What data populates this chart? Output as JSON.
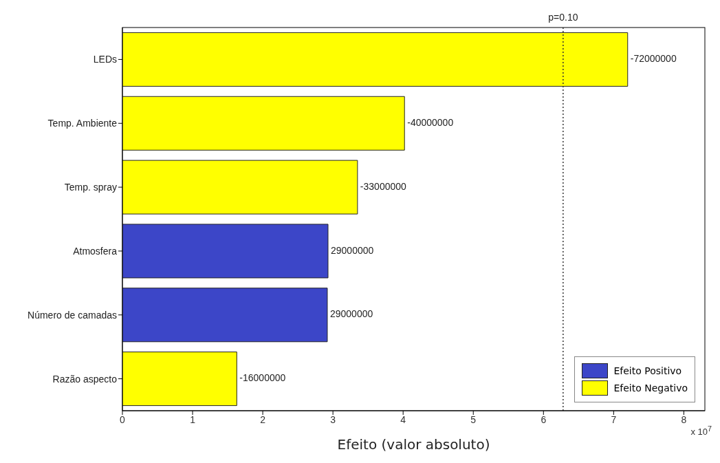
{
  "chart_data": {
    "type": "bar",
    "orientation": "horizontal",
    "stacked": true,
    "xlabel": "Efeito (valor absoluto)",
    "categories": [
      "LEDs",
      "Temp. Ambiente",
      "Temp. spray",
      "Atmosfera",
      "Número de camadas",
      "Razão aspecto"
    ],
    "series": [
      {
        "name": "Efeito Positivo",
        "color": "#3c46c8",
        "values": [
          null,
          null,
          null,
          2.93,
          2.92,
          null
        ]
      },
      {
        "name": "Efeito Negativo",
        "color": "#ffff00",
        "values": [
          7.2,
          4.02,
          3.35,
          null,
          null,
          1.63
        ]
      }
    ],
    "xlim": [
      0,
      8.3
    ],
    "xticks": [
      0,
      1,
      2,
      3,
      4,
      5,
      6,
      7,
      8
    ],
    "ref_lines": [
      {
        "axis": "x",
        "value": 6.28,
        "line_style": "dotted",
        "color": "#333333"
      }
    ],
    "annotations": [
      "p=0.10",
      {
        "text": "-72000000",
        "x": 7.2,
        "y": "LEDs"
      },
      {
        "text": "-40000000",
        "x": 4.02,
        "y": "Temp. Ambiente"
      },
      {
        "text": "-33000000",
        "x": 3.35,
        "y": "Temp. spray"
      },
      {
        "text": "29000000",
        "x": 2.93,
        "y": "Atmosfera"
      },
      {
        "text": "29000000",
        "x": 2.92,
        "y": "Número de camadas"
      },
      {
        "text": "-16000000",
        "x": 1.63,
        "y": "Razão aspecto"
      },
      "x 10$^{7}$"
    ],
    "legend": "bottom right"
  }
}
